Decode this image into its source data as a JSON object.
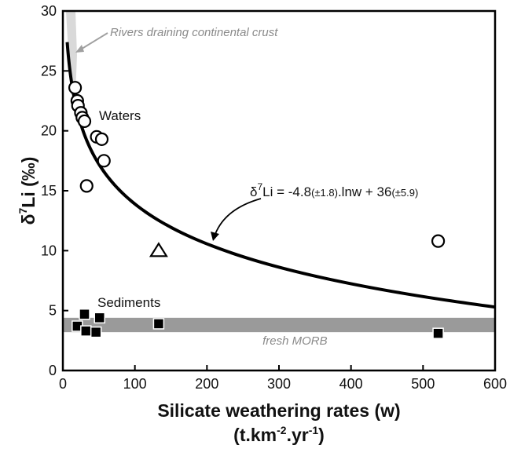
{
  "chart_data": {
    "type": "scatter",
    "xlabel": "Silicate weathering rates (w)",
    "xlabel_units": "(t.km-2.yr-1)",
    "ylabel": "δ7Li (‰)",
    "xlim": [
      0,
      600
    ],
    "ylim": [
      0,
      30
    ],
    "x_ticks": [
      0,
      100,
      200,
      300,
      400,
      500,
      600
    ],
    "y_ticks": [
      0,
      5,
      10,
      15,
      20,
      25,
      30
    ],
    "grid": false,
    "fit_curve": {
      "label": "δ7Li = -4.8(±1.8).lnw + 36(±5.9)",
      "slope": -4.8,
      "intercept": 36,
      "x_start": 6,
      "x_end": 600
    },
    "morb_band": {
      "label": "fresh MORB",
      "y_min": 3.2,
      "y_max": 4.4
    },
    "waters": [
      {
        "x": 17,
        "y": 23.6
      },
      {
        "x": 20,
        "y": 22.5
      },
      {
        "x": 21,
        "y": 22.1
      },
      {
        "x": 25,
        "y": 21.5
      },
      {
        "x": 27,
        "y": 21.1
      },
      {
        "x": 30,
        "y": 20.8
      },
      {
        "x": 33,
        "y": 15.4
      },
      {
        "x": 47,
        "y": 19.5
      },
      {
        "x": 54,
        "y": 19.3
      },
      {
        "x": 57,
        "y": 17.5
      },
      {
        "x": 521,
        "y": 10.8
      }
    ],
    "triangle_point": {
      "x": 133,
      "y": 10.0
    },
    "sediments": [
      {
        "x": 20,
        "y": 3.7
      },
      {
        "x": 30,
        "y": 4.7
      },
      {
        "x": 32,
        "y": 3.3
      },
      {
        "x": 46,
        "y": 3.2
      },
      {
        "x": 51,
        "y": 4.4
      },
      {
        "x": 133,
        "y": 3.9
      },
      {
        "x": 521,
        "y": 3.1
      }
    ],
    "annotations": {
      "rivers": "Rivers draining continental crust",
      "waters": "Waters",
      "sediments": "Sediments"
    }
  }
}
